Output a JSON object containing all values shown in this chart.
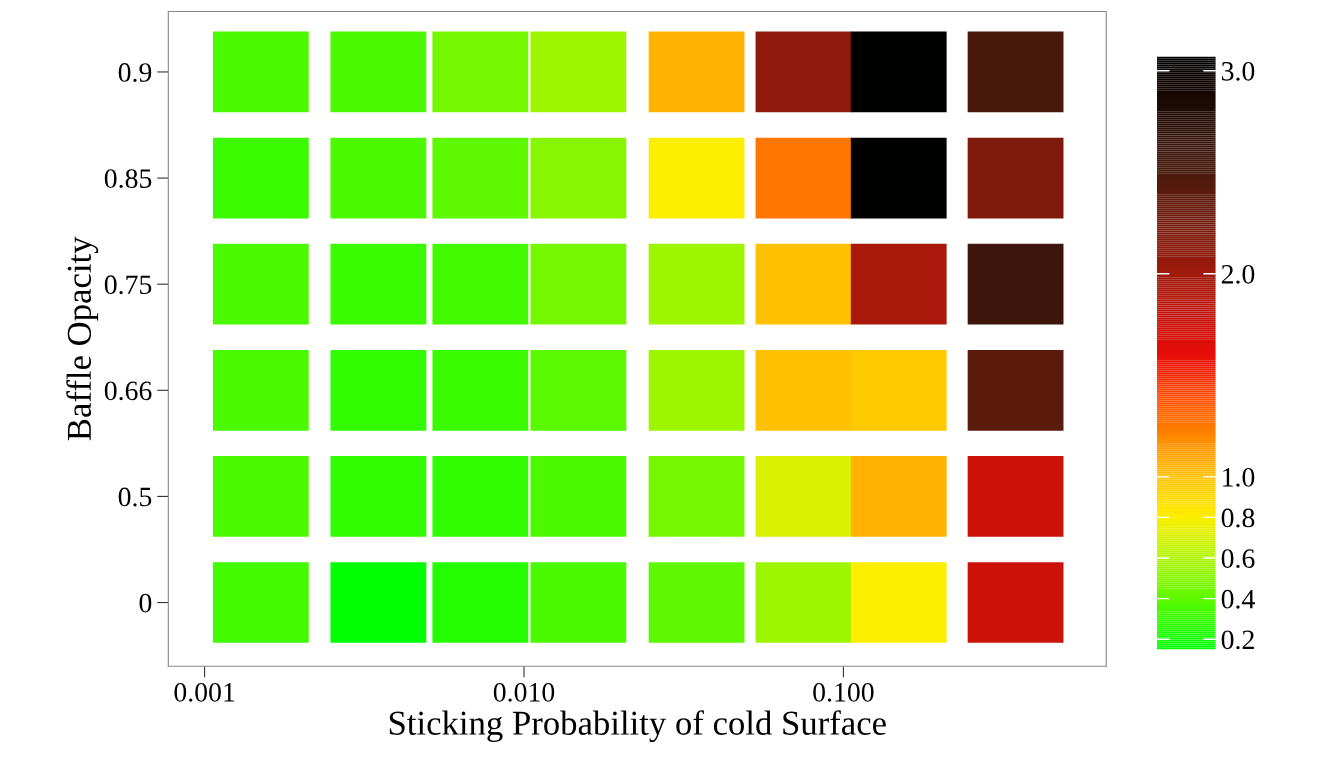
{
  "chart_data": {
    "type": "heatmap",
    "xlabel": "Sticking Probability of cold Surface",
    "ylabel": "Baffle Opacity",
    "x": [
      0.0015,
      0.0035,
      0.0073,
      0.0148,
      0.0347,
      0.075,
      0.149,
      0.346
    ],
    "log": "x",
    "xlim": [
      0.00077,
      0.665
    ],
    "xticks": [
      {
        "value": 0.001,
        "label": "0.001"
      },
      {
        "value": 0.01,
        "label": "0.010"
      },
      {
        "value": 0.1,
        "label": "0.100"
      }
    ],
    "y_categories": [
      "0.9",
      "0.85",
      "0.75",
      "0.66",
      "0.5",
      "0"
    ],
    "cells": [
      [
        0.35,
        0.35,
        0.45,
        0.55,
        1.05,
        2.1,
        3.05,
        2.5
      ],
      [
        0.3,
        0.35,
        0.4,
        0.5,
        0.8,
        1.25,
        3.05,
        2.2
      ],
      [
        0.35,
        0.3,
        0.33,
        0.45,
        0.55,
        1.0,
        1.95,
        2.6
      ],
      [
        0.35,
        0.28,
        0.3,
        0.38,
        0.55,
        1.0,
        0.95,
        2.4
      ],
      [
        0.35,
        0.28,
        0.28,
        0.35,
        0.45,
        0.7,
        1.05,
        1.75
      ],
      [
        0.33,
        0.15,
        0.25,
        0.35,
        0.4,
        0.55,
        0.8,
        1.75
      ]
    ],
    "clim": [
      0.15,
      3.07
    ],
    "cticks": [
      0.2,
      0.4,
      0.6,
      0.8,
      {
        "value": 1.0,
        "label": "1.0"
      },
      {
        "value": 2.0,
        "label": "2.0"
      },
      {
        "value": 3.0,
        "label": "3.0"
      }
    ],
    "grid": false
  }
}
